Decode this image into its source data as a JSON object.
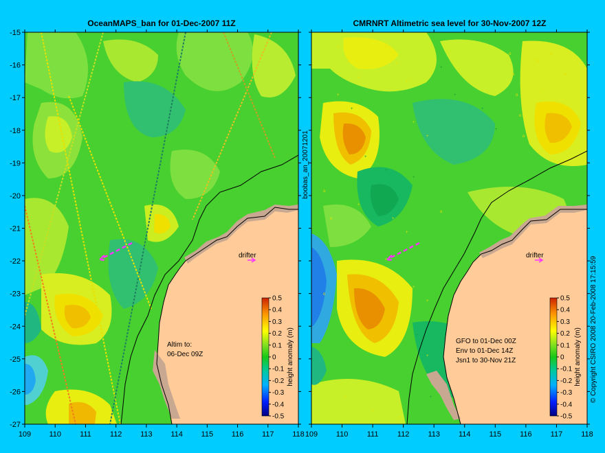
{
  "panels": [
    {
      "title": "OceanMAPS_ban for 01-Dec-2007 11Z",
      "annotation": [
        "Altim to:",
        "06-Dec 09Z"
      ],
      "drifter_label": "drifter",
      "colorbar_label": "height anomaly (m)"
    },
    {
      "title": "CMRNRT Altimetric sea level  for 30-Nov-2007 12Z",
      "annotation": [
        "GFO to 01-Dec 00Z",
        "Env to 01-Dec 14Z",
        "Jsn1 to 30-Nov 21Z"
      ],
      "drifter_label": "drifter",
      "colorbar_label": "height anomaly (m)"
    }
  ],
  "side_labels": {
    "middle": "boobas_an_20071201",
    "right": "© Copyright CSIRO 2008   20-Feb-2008 17:15:59"
  },
  "axes": {
    "lon_range": [
      109,
      118
    ],
    "lat_range": [
      -27,
      -15
    ],
    "lon_ticks": [
      "109",
      "110",
      "111",
      "112",
      "113",
      "114",
      "115",
      "116",
      "117",
      "118"
    ],
    "lat_ticks": [
      "-15",
      "-16",
      "-17",
      "-18",
      "-19",
      "-20",
      "-21",
      "-22",
      "-23",
      "-24",
      "-25",
      "-26",
      "-27"
    ]
  },
  "colorbar": {
    "ticks": [
      "0.5",
      "0.4",
      "0.3",
      "0.2",
      "0.1",
      "0",
      "-0.1",
      "-0.2",
      "-0.3",
      "-0.4",
      "-0.5"
    ],
    "range": [
      -0.5,
      0.5
    ]
  },
  "colors": {
    "background": "#00ccff",
    "land": "#ffcc99",
    "shallow": "#c8a890",
    "arrow": "#ff33ff",
    "coastline": "#000000"
  }
}
